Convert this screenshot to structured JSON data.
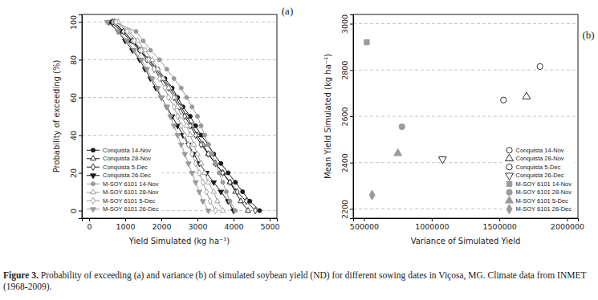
{
  "chart_data": [
    {
      "type": "line",
      "title": "(a)",
      "x_label": "Yield Simulated (kg ha⁻¹)",
      "y_label": "Probability of exceeding (%)",
      "xlim": [
        -200,
        5200
      ],
      "xticks": [
        0,
        1000,
        2000,
        3000,
        4000,
        5000
      ],
      "ylim": [
        -4,
        104
      ],
      "yticks": [
        0,
        20,
        40,
        60,
        80,
        100
      ],
      "grid": "y",
      "legend": "bottom-left",
      "line_style": "solid",
      "series": [
        {
          "name": "Conquista 14-Nov",
          "color": "#1a1a1a",
          "marker": "circle",
          "x": [
            600,
            900,
            1150,
            1400,
            1650,
            1900,
            2100,
            2300,
            2450,
            2600,
            2800,
            2950,
            3100,
            3300,
            3450,
            3650,
            3850,
            4050,
            4250,
            4450,
            4720
          ],
          "values": [
            100,
            95,
            90,
            85,
            80,
            75,
            70,
            65,
            60,
            55,
            50,
            45,
            40,
            35,
            30,
            25,
            20,
            15,
            10,
            5,
            0
          ]
        },
        {
          "name": "Conquista 28-Nov",
          "color": "#1a1a1a",
          "marker": "open-triangle",
          "x": [
            700,
            950,
            1200,
            1450,
            1650,
            1850,
            2050,
            2250,
            2400,
            2550,
            2700,
            2850,
            3000,
            3150,
            3300,
            3500,
            3700,
            3900,
            4050,
            4200,
            4400
          ],
          "values": [
            100,
            95,
            90,
            85,
            80,
            75,
            70,
            65,
            60,
            55,
            50,
            45,
            40,
            35,
            30,
            25,
            20,
            15,
            10,
            5,
            0
          ]
        },
        {
          "name": "Conquista 5-Dec",
          "color": "#1a1a1a",
          "marker": "open-diamond",
          "x": [
            650,
            950,
            1200,
            1400,
            1600,
            1800,
            2000,
            2200,
            2350,
            2500,
            2650,
            2800,
            2950,
            3100,
            3300,
            3500,
            3700,
            3900,
            4100,
            4350,
            4600
          ],
          "values": [
            100,
            95,
            90,
            85,
            80,
            75,
            70,
            65,
            60,
            55,
            50,
            45,
            40,
            35,
            30,
            25,
            20,
            15,
            10,
            5,
            0
          ]
        },
        {
          "name": "Conquista 26-Dec",
          "color": "#1a1a1a",
          "marker": "triangle-down",
          "x": [
            550,
            800,
            1000,
            1200,
            1400,
            1550,
            1700,
            1850,
            2000,
            2150,
            2300,
            2450,
            2600,
            2750,
            2900,
            3050,
            3250,
            3450,
            3650,
            3850,
            4000
          ],
          "values": [
            100,
            95,
            90,
            85,
            80,
            75,
            70,
            65,
            60,
            55,
            50,
            45,
            40,
            35,
            30,
            25,
            20,
            15,
            10,
            5,
            0
          ]
        },
        {
          "name": "M-SOY 6101 14-Nov",
          "color": "#9a9a9a",
          "marker": "circle",
          "x": [
            700,
            1300,
            1500,
            1700,
            1950,
            2150,
            2350,
            2550,
            2700,
            2850,
            3000,
            3100,
            3200,
            3300,
            3400,
            3500,
            3600,
            3700,
            3800,
            3900,
            4050
          ],
          "values": [
            100,
            95,
            90,
            85,
            80,
            75,
            70,
            65,
            60,
            55,
            50,
            45,
            40,
            35,
            30,
            25,
            20,
            15,
            10,
            5,
            0
          ]
        },
        {
          "name": "M-SOY 6101 28-Nov",
          "color": "#9a9a9a",
          "marker": "open-triangle",
          "x": [
            800,
            1100,
            1350,
            1550,
            1750,
            1900,
            2050,
            2200,
            2350,
            2450,
            2550,
            2700,
            2800,
            2900,
            3000,
            3100,
            3200,
            3300,
            3450,
            3550,
            3700
          ],
          "values": [
            100,
            95,
            90,
            85,
            80,
            75,
            70,
            65,
            60,
            55,
            50,
            45,
            40,
            35,
            30,
            25,
            20,
            15,
            10,
            5,
            0
          ]
        },
        {
          "name": "M-SOY 6101 5-Dec",
          "color": "#9a9a9a",
          "marker": "open-diamond",
          "x": [
            750,
            1050,
            1250,
            1450,
            1650,
            1800,
            1950,
            2100,
            2200,
            2350,
            2450,
            2550,
            2650,
            2750,
            2850,
            2950,
            3050,
            3150,
            3250,
            3350,
            3500
          ],
          "values": [
            100,
            95,
            90,
            85,
            80,
            75,
            70,
            65,
            60,
            55,
            50,
            45,
            40,
            35,
            30,
            25,
            20,
            15,
            10,
            5,
            0
          ]
        },
        {
          "name": "M-SOY 6101 26-Dec",
          "color": "#9a9a9a",
          "marker": "triangle-down",
          "x": [
            500,
            800,
            1050,
            1250,
            1450,
            1600,
            1750,
            1900,
            2000,
            2150,
            2250,
            2350,
            2450,
            2550,
            2650,
            2750,
            2850,
            2950,
            3050,
            3150,
            3300
          ],
          "values": [
            100,
            95,
            90,
            85,
            80,
            75,
            70,
            65,
            60,
            55,
            50,
            45,
            40,
            35,
            30,
            25,
            20,
            15,
            10,
            5,
            0
          ]
        }
      ]
    },
    {
      "type": "scatter",
      "title": "(b)",
      "x_label": "Variance of Simulated Yield",
      "y_label": "Mean Yield Simulated (kg ha⁻¹)",
      "xlim": [
        420000,
        2080000
      ],
      "xticks": [
        500000,
        1000000,
        1500000,
        2000000
      ],
      "ylim": [
        2160,
        3040
      ],
      "yticks": [
        2200,
        2400,
        2600,
        2800,
        3000
      ],
      "grid": "y",
      "legend": "bottom-right",
      "series": [
        {
          "name": "Conquista 14-Nov",
          "color": "#1a1a1a",
          "marker": "open-circle",
          "x": [
            1800000
          ],
          "values": [
            2815
          ]
        },
        {
          "name": "Conquista 28-Nov",
          "color": "#1a1a1a",
          "marker": "open-triangle",
          "x": [
            1700000
          ],
          "values": [
            2685
          ]
        },
        {
          "name": "Conquista 5-Dec",
          "color": "#1a1a1a",
          "marker": "open-circle",
          "x": [
            1530000
          ],
          "values": [
            2670
          ]
        },
        {
          "name": "Conquista 26-Dec",
          "color": "#1a1a1a",
          "marker": "open-triangle-down",
          "x": [
            1080000
          ],
          "values": [
            2415
          ]
        },
        {
          "name": "M-SOY 6101 14-Nov",
          "color": "#9a9a9a",
          "marker": "square",
          "x": [
            520000
          ],
          "values": [
            2920
          ]
        },
        {
          "name": "M-SOY 6101 28-Nov",
          "color": "#9a9a9a",
          "marker": "circle",
          "x": [
            780000
          ],
          "values": [
            2555
          ]
        },
        {
          "name": "M-SOY 6101 5-Dec",
          "color": "#9a9a9a",
          "marker": "triangle",
          "x": [
            750000
          ],
          "values": [
            2440
          ]
        },
        {
          "name": "M-SOY 6101 26-Dec",
          "color": "#9a9a9a",
          "marker": "diamond",
          "x": [
            560000
          ],
          "values": [
            2260
          ]
        }
      ]
    }
  ],
  "caption": {
    "label": "Figure 3.",
    "text": "Probability of exceeding (a) and variance (b) of simulated soybean yield (ND) for different sowing dates in Viçosa, MG. Climate data from INMET (1968-2009)."
  }
}
